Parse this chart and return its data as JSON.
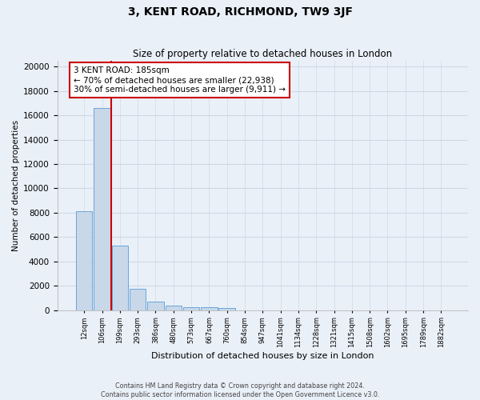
{
  "title": "3, KENT ROAD, RICHMOND, TW9 3JF",
  "subtitle": "Size of property relative to detached houses in London",
  "xlabel": "Distribution of detached houses by size in London",
  "ylabel": "Number of detached properties",
  "bar_values": [
    8100,
    16600,
    5300,
    1750,
    700,
    350,
    270,
    210,
    160,
    0,
    0,
    0,
    0,
    0,
    0,
    0,
    0,
    0,
    0,
    0,
    0
  ],
  "bar_labels": [
    "12sqm",
    "106sqm",
    "199sqm",
    "293sqm",
    "386sqm",
    "480sqm",
    "573sqm",
    "667sqm",
    "760sqm",
    "854sqm",
    "947sqm",
    "1041sqm",
    "1134sqm",
    "1228sqm",
    "1321sqm",
    "1415sqm",
    "1508sqm",
    "1602sqm",
    "1695sqm",
    "1789sqm",
    "1882sqm"
  ],
  "bar_color": "#c8d8e8",
  "bar_edge_color": "#5b9bd5",
  "annotation_text": "3 KENT ROAD: 185sqm\n← 70% of detached houses are smaller (22,938)\n30% of semi-detached houses are larger (9,911) →",
  "annotation_box_color": "#ffffff",
  "annotation_border_color": "#cc0000",
  "vline_color": "#cc0000",
  "ylim": [
    0,
    20500
  ],
  "yticks": [
    0,
    2000,
    4000,
    6000,
    8000,
    10000,
    12000,
    14000,
    16000,
    18000,
    20000
  ],
  "grid_color": "#d0d8e8",
  "background_color": "#eaf0f8",
  "footer1": "Contains HM Land Registry data © Crown copyright and database right 2024.",
  "footer2": "Contains public sector information licensed under the Open Government Licence v3.0."
}
